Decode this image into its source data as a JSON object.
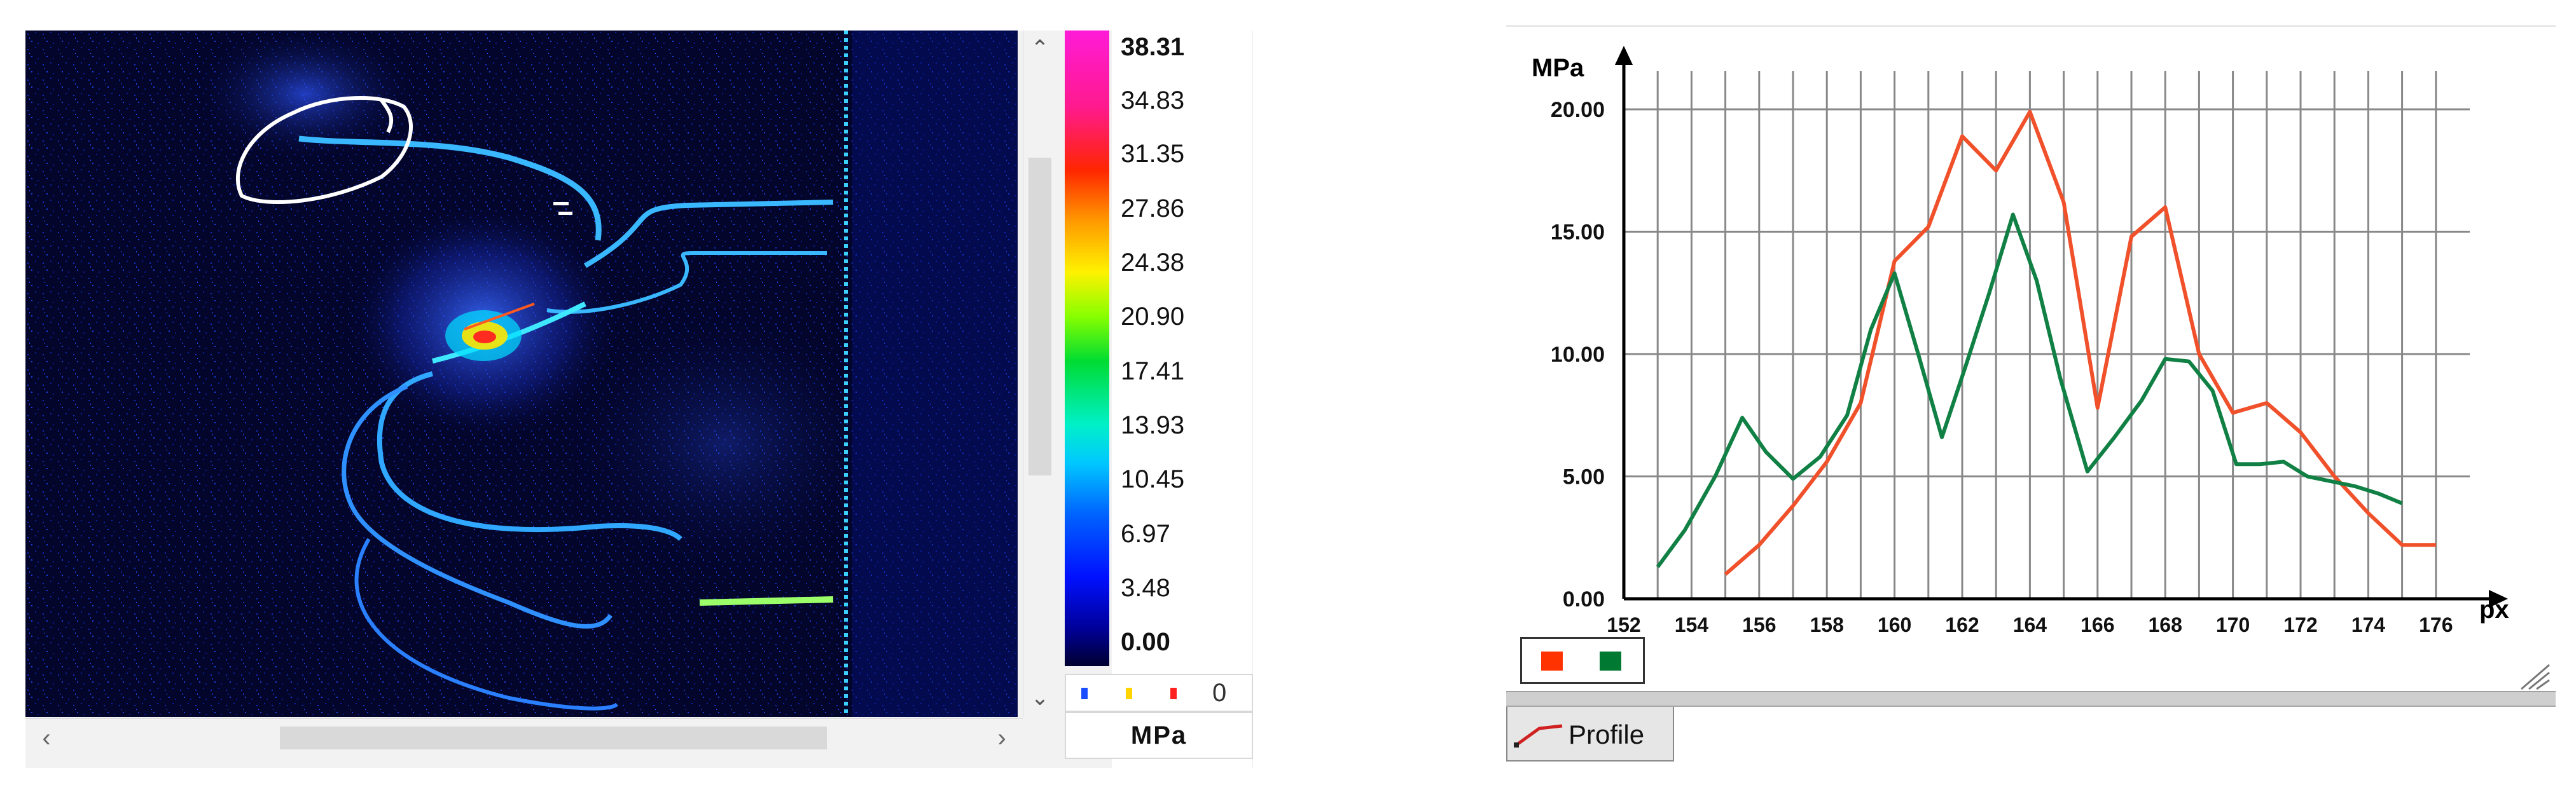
{
  "viewer": {
    "colorbar_ticks": [
      "38.31",
      "34.83",
      "31.35",
      "27.86",
      "24.38",
      "20.90",
      "17.41",
      "13.93",
      "10.45",
      "6.97",
      "3.48",
      "0.00"
    ],
    "legend_value": "0",
    "unit_label": "MPa",
    "legend_dot_colors": [
      "#1a4dff",
      "#ffd400",
      "#ff2020"
    ],
    "scroll_up_icon": "chevron-up-icon",
    "scroll_down_icon": "chevron-down-icon",
    "scroll_left_icon": "chevron-left-icon",
    "scroll_right_icon": "chevron-right-icon"
  },
  "profile": {
    "tab_label": "Profile",
    "tab_icon": "profile-line-icon",
    "legend_colors": [
      "#ff3300",
      "#007a33"
    ],
    "chart_data": {
      "type": "line",
      "ylabel": "MPa",
      "xlabel": "px",
      "xlim": [
        152,
        177
      ],
      "ylim": [
        0,
        20
      ],
      "x_ticks": [
        "152",
        "154",
        "156",
        "158",
        "160",
        "162",
        "164",
        "166",
        "168",
        "170",
        "172",
        "174",
        "176"
      ],
      "y_ticks": [
        "0.00",
        "5.00",
        "10.00",
        "15.00",
        "20.00"
      ],
      "grid": true,
      "series": [
        {
          "color": "#f0502a",
          "x": [
            155,
            156,
            157,
            158,
            159,
            160,
            161,
            162,
            163,
            164,
            165,
            166,
            167,
            168,
            169,
            170,
            171,
            172,
            173,
            174,
            175,
            176
          ],
          "y": [
            1.0,
            2.2,
            3.8,
            5.6,
            8.0,
            13.8,
            15.2,
            18.9,
            17.5,
            19.9,
            16.2,
            7.8,
            14.8,
            16.0,
            10.0,
            7.6,
            8.0,
            6.8,
            5.0,
            3.5,
            2.2,
            2.2
          ]
        },
        {
          "color": "#118044",
          "x": [
            153,
            153.8,
            154.7,
            155.5,
            156.2,
            157,
            157.8,
            158.6,
            159.3,
            160,
            160.7,
            161.4,
            162.1,
            162.8,
            163.5,
            164.2,
            164.9,
            165.7,
            166.5,
            167.3,
            168,
            168.7,
            169.4,
            170.1,
            170.8,
            171.5,
            172.2,
            172.9,
            173.6,
            174.3,
            175
          ],
          "y": [
            1.3,
            2.8,
            5.0,
            7.4,
            6.0,
            4.9,
            5.8,
            7.5,
            11.0,
            13.3,
            10.0,
            6.6,
            9.5,
            12.5,
            15.7,
            13.0,
            9.0,
            5.2,
            6.6,
            8.1,
            9.8,
            9.7,
            8.5,
            5.5,
            5.5,
            5.6,
            5.0,
            4.8,
            4.6,
            4.3,
            3.9
          ]
        }
      ]
    }
  }
}
